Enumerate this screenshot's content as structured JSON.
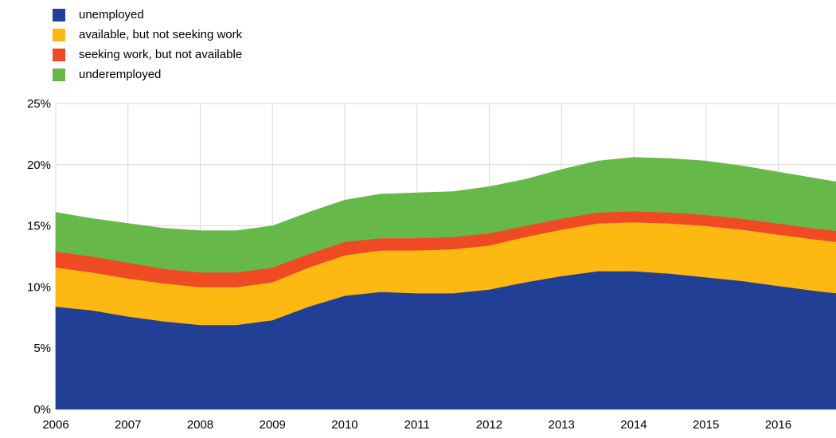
{
  "chart_data": {
    "type": "area",
    "stacked": true,
    "x": [
      2006.0,
      2006.5,
      2007.0,
      2007.5,
      2008.0,
      2008.5,
      2009.0,
      2009.5,
      2010.0,
      2010.5,
      2011.0,
      2011.5,
      2012.0,
      2012.5,
      2013.0,
      2013.5,
      2014.0,
      2014.5,
      2015.0,
      2015.5,
      2016.0,
      2016.5,
      2016.8
    ],
    "x_tick_labels": [
      "2006",
      "2007",
      "2008",
      "2009",
      "2010",
      "2011",
      "2012",
      "2013",
      "2014",
      "2015",
      "2016"
    ],
    "y_tick_labels": [
      "0%",
      "5%",
      "10%",
      "15%",
      "20%",
      "25%"
    ],
    "ylim": [
      0,
      25
    ],
    "xlim": [
      2006,
      2016.8
    ],
    "grid": true,
    "legend_position": "top-left",
    "series": [
      {
        "name": "unemployed",
        "color": "#213f95",
        "values": [
          8.4,
          8.1,
          7.6,
          7.2,
          6.9,
          6.9,
          7.3,
          8.4,
          9.3,
          9.6,
          9.5,
          9.5,
          9.8,
          10.4,
          10.9,
          11.3,
          11.3,
          11.1,
          10.8,
          10.5,
          10.1,
          9.7,
          9.5
        ]
      },
      {
        "name": "available, but not seeking work",
        "color": "#fdb912",
        "values": [
          3.2,
          3.1,
          3.1,
          3.1,
          3.1,
          3.1,
          3.1,
          3.2,
          3.3,
          3.4,
          3.5,
          3.6,
          3.6,
          3.7,
          3.8,
          3.9,
          4.0,
          4.1,
          4.2,
          4.2,
          4.2,
          4.2,
          4.2
        ]
      },
      {
        "name": "seeking work, but not available",
        "color": "#ef4a23",
        "values": [
          1.3,
          1.3,
          1.3,
          1.2,
          1.2,
          1.2,
          1.2,
          1.1,
          1.1,
          1.0,
          1.0,
          1.0,
          1.0,
          0.9,
          0.9,
          0.9,
          0.9,
          0.9,
          0.9,
          0.9,
          0.9,
          0.9,
          0.9
        ]
      },
      {
        "name": "underemployed",
        "color": "#66b949",
        "values": [
          3.2,
          3.1,
          3.2,
          3.3,
          3.4,
          3.4,
          3.4,
          3.4,
          3.4,
          3.6,
          3.7,
          3.7,
          3.8,
          3.8,
          4.0,
          4.2,
          4.4,
          4.4,
          4.4,
          4.3,
          4.2,
          4.1,
          4.0
        ]
      }
    ]
  }
}
